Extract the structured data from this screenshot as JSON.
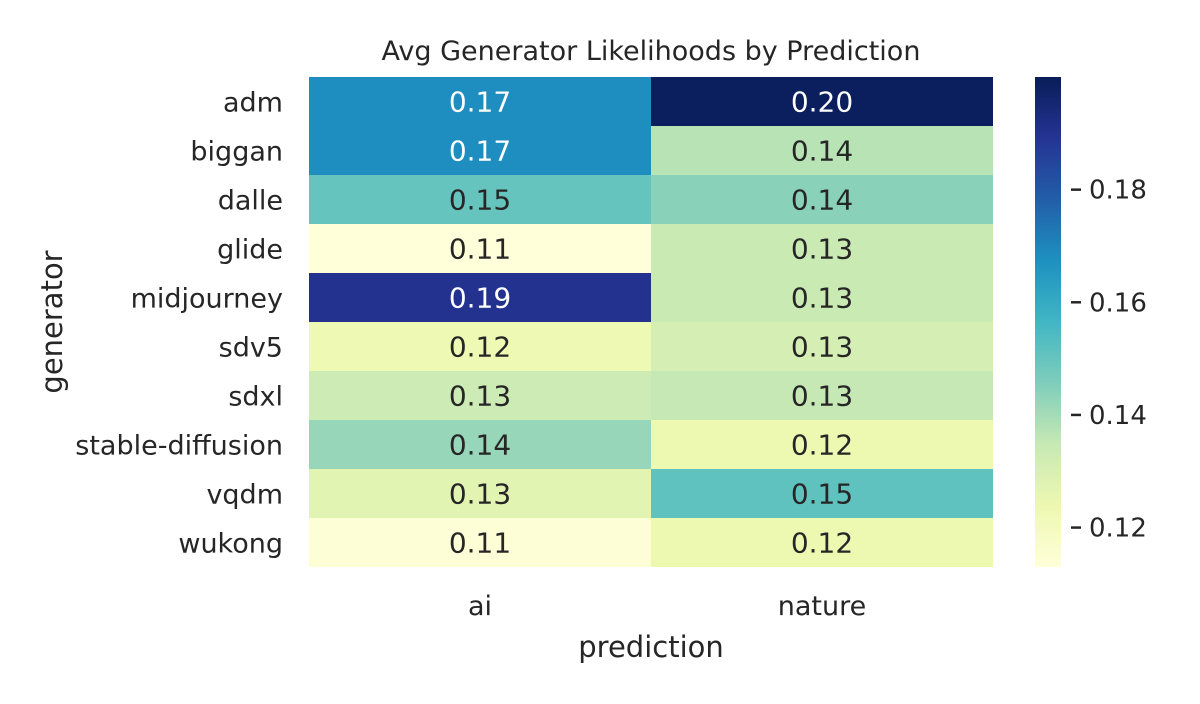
{
  "chart_data": {
    "type": "heatmap",
    "title": "Avg Generator Likelihoods by Prediction",
    "xlabel": "prediction",
    "ylabel": "generator",
    "columns": [
      "ai",
      "nature"
    ],
    "rows": [
      "adm",
      "biggan",
      "dalle",
      "glide",
      "midjourney",
      "sdv5",
      "sdxl",
      "stable-diffusion",
      "vqdm",
      "wukong"
    ],
    "values": [
      [
        0.168,
        0.199
      ],
      [
        0.168,
        0.137
      ],
      [
        0.15,
        0.144
      ],
      [
        0.113,
        0.134
      ],
      [
        0.19,
        0.134
      ],
      [
        0.123,
        0.131
      ],
      [
        0.133,
        0.135
      ],
      [
        0.142,
        0.124
      ],
      [
        0.127,
        0.151
      ],
      [
        0.114,
        0.124
      ]
    ],
    "value_labels": [
      [
        "0.17",
        "0.20"
      ],
      [
        "0.17",
        "0.14"
      ],
      [
        "0.15",
        "0.14"
      ],
      [
        "0.11",
        "0.13"
      ],
      [
        "0.19",
        "0.13"
      ],
      [
        "0.12",
        "0.13"
      ],
      [
        "0.13",
        "0.13"
      ],
      [
        "0.14",
        "0.12"
      ],
      [
        "0.13",
        "0.15"
      ],
      [
        "0.11",
        "0.12"
      ]
    ],
    "colormap": "YlGnBu",
    "colorbar": {
      "range": [
        0.113,
        0.2
      ],
      "ticks": [
        0.12,
        0.14,
        0.16,
        0.18
      ],
      "tick_labels": [
        "0.12",
        "0.14",
        "0.16",
        "0.18"
      ]
    },
    "grid": false,
    "legend": "colorbar-right"
  }
}
